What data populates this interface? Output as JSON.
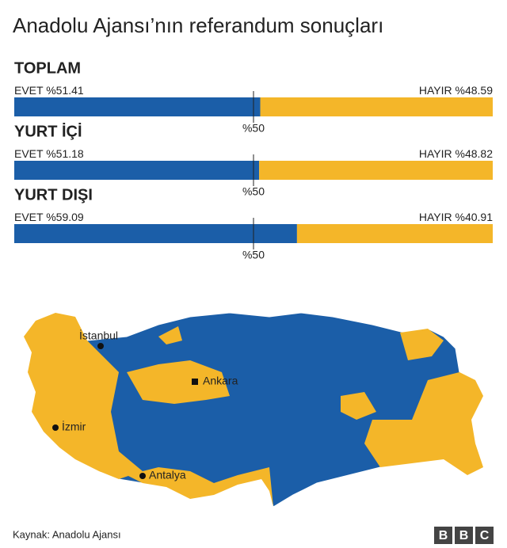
{
  "title": "Anadolu Ajansı’nın referandum sonuçları",
  "chart_data": [
    {
      "type": "stacked-bar",
      "title": "TOPLAM",
      "series": [
        {
          "name": "EVET",
          "color": "#1b5ea8",
          "values": [
            51.41
          ],
          "value_labels": [
            "%51.41"
          ]
        },
        {
          "name": "HAYIR",
          "color": "#f4b629",
          "values": [
            48.59
          ],
          "value_labels": [
            "%48.59"
          ]
        }
      ],
      "xlim": [
        0,
        100
      ],
      "xticks": [
        {
          "value": 50,
          "label": "%50"
        }
      ]
    },
    {
      "type": "stacked-bar",
      "title": "YURT İÇİ",
      "series": [
        {
          "name": "EVET",
          "color": "#1b5ea8",
          "values": [
            51.18
          ],
          "value_labels": [
            "%51.18"
          ]
        },
        {
          "name": "HAYIR",
          "color": "#f4b629",
          "values": [
            48.82
          ],
          "value_labels": [
            "%48.82"
          ]
        }
      ],
      "xlim": [
        0,
        100
      ],
      "xticks": [
        {
          "value": 50,
          "label": "%50"
        }
      ]
    },
    {
      "type": "stacked-bar",
      "title": "YURT DIŞI",
      "series": [
        {
          "name": "EVET",
          "color": "#1b5ea8",
          "values": [
            59.09
          ],
          "value_labels": [
            "%59.09"
          ]
        },
        {
          "name": "HAYIR",
          "color": "#f4b629",
          "values": [
            40.91
          ],
          "value_labels": [
            "%40.91"
          ]
        }
      ],
      "xlim": [
        0,
        100
      ],
      "xticks": [
        {
          "value": 50,
          "label": "%50"
        }
      ]
    }
  ],
  "map": {
    "cities": [
      "İstanbul",
      "Ankara",
      "İzmir",
      "Antalya"
    ]
  },
  "source": "Kaynak: Anadolu Ajansı",
  "logo": [
    "B",
    "B",
    "C"
  ]
}
